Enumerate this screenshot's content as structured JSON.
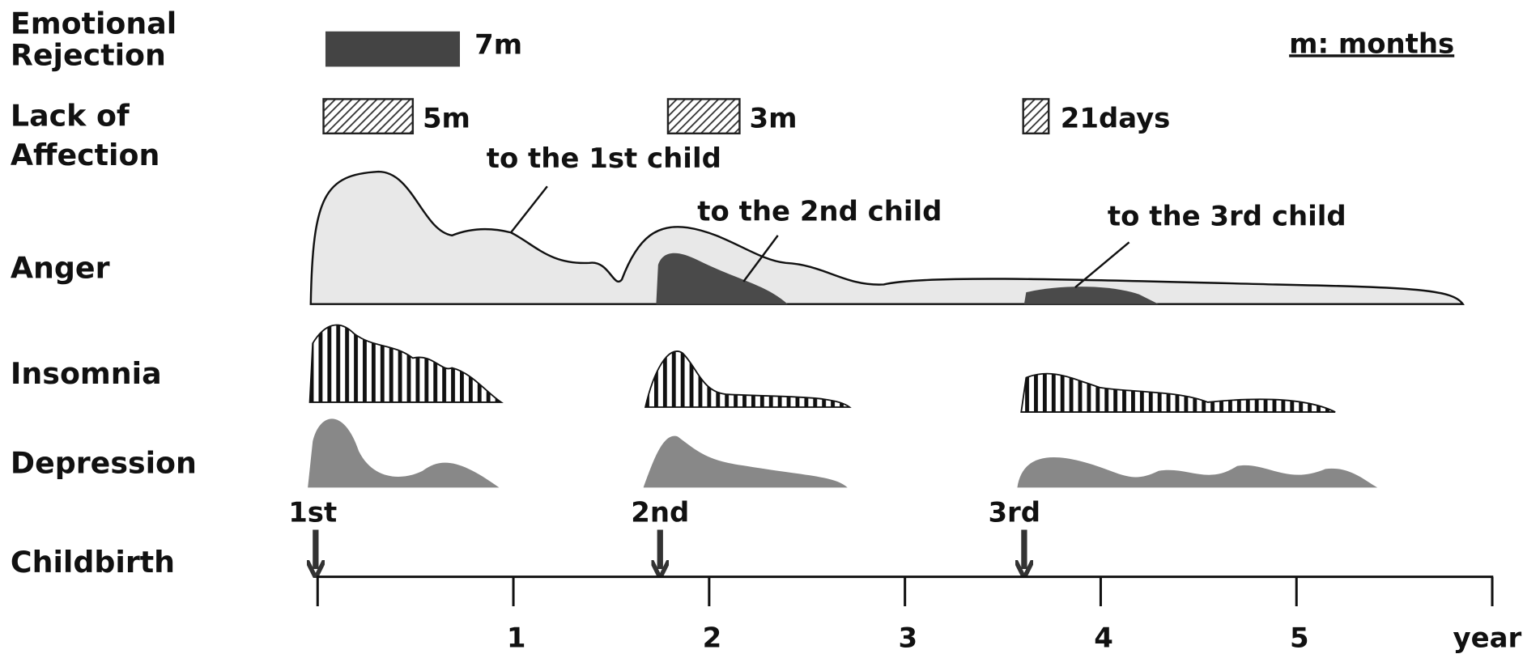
{
  "legend_note": "m: months",
  "rows": [
    {
      "lines": [
        "Emotional",
        "Rejection"
      ]
    },
    {
      "lines": [
        "Lack of",
        "Affection"
      ]
    },
    {
      "lines": [
        "Anger"
      ]
    },
    {
      "lines": [
        "Insomnia"
      ]
    },
    {
      "lines": [
        "Depression"
      ]
    },
    {
      "lines": [
        "Childbirth"
      ]
    }
  ],
  "durations": {
    "rejection": [
      "7m"
    ],
    "lack_of_affection": [
      "5m",
      "3m",
      "21days"
    ]
  },
  "anger_annotations": [
    "to the 1st child",
    "to the 2nd child",
    "to the 3rd child"
  ],
  "births": [
    "1st",
    "2nd",
    "3rd"
  ],
  "axis": {
    "xlim": [
      0,
      6
    ],
    "xticks": [
      1,
      2,
      3,
      4,
      5
    ],
    "label": "year"
  }
}
